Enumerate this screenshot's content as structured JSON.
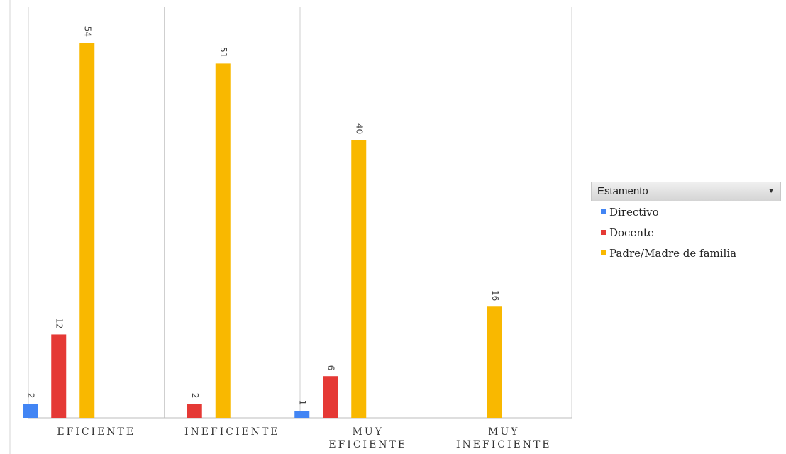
{
  "chart_data": {
    "type": "bar",
    "categories": [
      "EFICIENTE",
      "INEFICIENTE",
      "MUY EFICIENTE",
      "MUY INEFICIENTE"
    ],
    "category_label_lines": [
      [
        "EFICIENTE"
      ],
      [
        "INEFICIENTE"
      ],
      [
        "MUY",
        "EFICIENTE"
      ],
      [
        "MUY",
        "INEFICIENTE"
      ]
    ],
    "series": [
      {
        "name": "Directivo",
        "color": "#4285f4",
        "values": [
          2,
          null,
          1,
          null
        ]
      },
      {
        "name": "Docente",
        "color": "#e53935",
        "values": [
          12,
          2,
          6,
          null
        ]
      },
      {
        "name": "Padre/Madre de familia",
        "color": "#f9b800",
        "values": [
          54,
          51,
          40,
          16
        ]
      }
    ],
    "ylim": [
      0,
      54
    ],
    "data_labels": true,
    "grid": "vertical category separators",
    "legend_position": "right"
  },
  "legend": {
    "title": "Estamento"
  }
}
